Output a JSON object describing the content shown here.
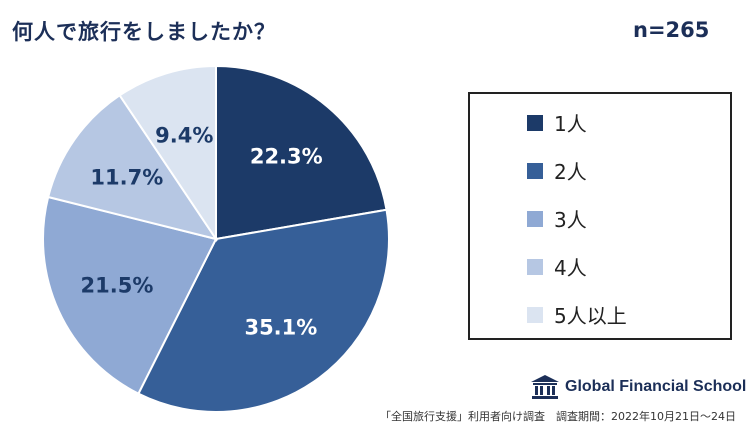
{
  "title": "何人で旅行をしましたか？",
  "sample_size": "n=265",
  "colors": {
    "title": "#1c2f58",
    "slices": [
      "#1c3a68",
      "#365f98",
      "#8fa9d4",
      "#b6c7e3",
      "#dbe4f1"
    ],
    "label_light": "#ffffff",
    "label_dark": "#1c3a68"
  },
  "chart_data": {
    "type": "pie",
    "title": "何人で旅行をしましたか？",
    "categories": [
      "1人",
      "2人",
      "3人",
      "4人",
      "5人以上"
    ],
    "values": [
      22.3,
      35.1,
      21.5,
      11.7,
      9.4
    ],
    "value_labels": [
      "22.3%",
      "35.1%",
      "21.5%",
      "11.7%",
      "9.4%"
    ],
    "start": "12 o'clock",
    "direction": "clockwise",
    "legend_position": "right"
  },
  "legend": {
    "items": [
      "1人",
      "2人",
      "3人",
      "4人",
      "5人以上"
    ]
  },
  "logo": {
    "icon": "school-building-icon",
    "text": "Global Financial School"
  },
  "footnote": "「全国旅行支援」利用者向け調査　調査期間：2022年10月21日〜24日"
}
